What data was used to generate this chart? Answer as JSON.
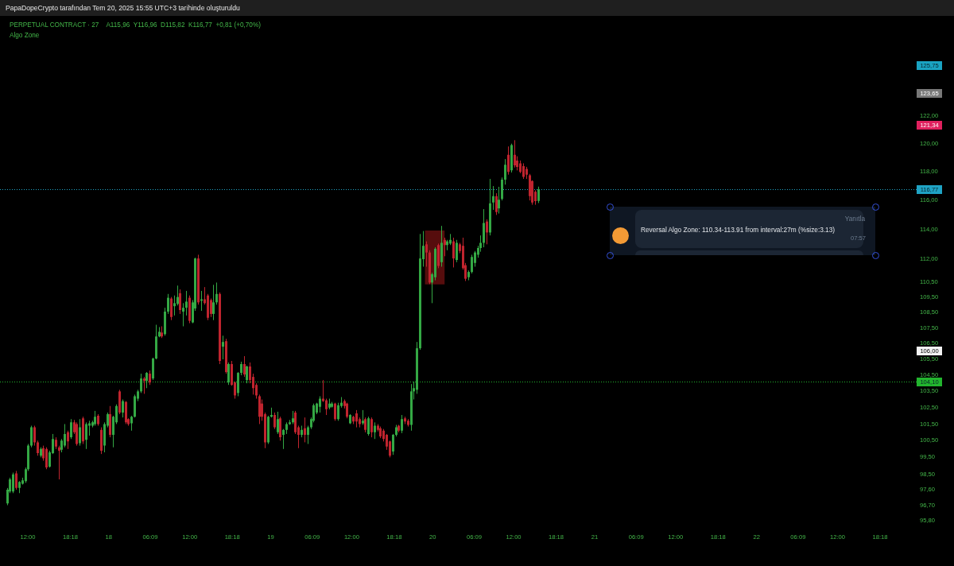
{
  "chart_data": {
    "type": "candlestick",
    "title": "PERPETUAL CONTRACT · 27",
    "subtitle": "A115,96  Y116,96  D115,82  K116,77  +0,81 (+0,70%)",
    "annotations": [
      "PapaDopeCrypto tarafından Tem 20, 2025 15:55 UTC+3 tarihinde oluşturuldu",
      "Algo Zone",
      "125,75",
      "123,65",
      "121,34",
      "106,00",
      "Yanıtla",
      "Reversal Algo Zone: 110.34-113.91 from interval:27m (%size:3.13)",
      "07:57"
    ],
    "x": [
      "2025-07-17T08:54",
      "2025-07-17T09:21",
      "2025-07-17T09:48",
      "2025-07-17T10:15",
      "2025-07-17T10:42",
      "2025-07-17T11:09",
      "2025-07-17T11:36",
      "2025-07-17T12:03",
      "2025-07-17T12:30",
      "2025-07-17T12:57",
      "2025-07-17T13:24",
      "2025-07-17T13:51",
      "2025-07-17T14:18",
      "2025-07-17T14:45",
      "2025-07-17T15:12",
      "2025-07-17T15:39",
      "2025-07-17T16:06",
      "2025-07-17T16:33",
      "2025-07-17T17:00",
      "2025-07-17T17:27",
      "2025-07-17T17:54",
      "2025-07-17T18:21",
      "2025-07-17T18:48",
      "2025-07-17T19:15",
      "2025-07-17T19:42",
      "2025-07-17T20:09",
      "2025-07-17T20:36",
      "2025-07-17T21:03",
      "2025-07-17T21:30",
      "2025-07-17T21:57",
      "2025-07-17T22:24",
      "2025-07-17T22:51",
      "2025-07-17T23:18",
      "2025-07-17T23:45",
      "2025-07-18T00:12",
      "2025-07-18T00:39",
      "2025-07-18T01:06",
      "2025-07-18T01:33",
      "2025-07-18T02:00",
      "2025-07-18T02:27",
      "2025-07-18T02:54",
      "2025-07-18T03:21",
      "2025-07-18T03:48",
      "2025-07-18T04:15",
      "2025-07-18T04:42",
      "2025-07-18T05:09",
      "2025-07-18T05:36",
      "2025-07-18T06:03",
      "2025-07-18T06:30",
      "2025-07-18T06:57",
      "2025-07-18T07:24",
      "2025-07-18T07:51",
      "2025-07-18T08:18",
      "2025-07-18T08:45",
      "2025-07-18T09:12",
      "2025-07-18T09:39",
      "2025-07-18T10:06",
      "2025-07-18T10:33",
      "2025-07-18T11:00",
      "2025-07-18T11:27",
      "2025-07-18T11:54",
      "2025-07-18T12:21",
      "2025-07-18T12:48",
      "2025-07-18T13:15",
      "2025-07-18T13:42",
      "2025-07-18T14:09",
      "2025-07-18T14:36",
      "2025-07-18T15:03",
      "2025-07-18T15:30",
      "2025-07-18T15:57",
      "2025-07-18T16:24",
      "2025-07-18T16:51",
      "2025-07-18T17:18",
      "2025-07-18T17:45",
      "2025-07-18T18:12",
      "2025-07-18T18:39",
      "2025-07-18T19:06",
      "2025-07-18T19:33",
      "2025-07-18T20:00",
      "2025-07-18T20:27",
      "2025-07-18T20:54",
      "2025-07-18T21:21",
      "2025-07-18T21:48",
      "2025-07-18T22:15",
      "2025-07-18T22:42",
      "2025-07-18T23:09",
      "2025-07-18T23:36",
      "2025-07-19T00:03",
      "2025-07-19T00:30",
      "2025-07-19T00:57",
      "2025-07-19T01:24",
      "2025-07-19T01:51",
      "2025-07-19T02:18",
      "2025-07-19T02:45",
      "2025-07-19T03:12",
      "2025-07-19T03:39",
      "2025-07-19T04:06",
      "2025-07-19T04:33",
      "2025-07-19T05:00",
      "2025-07-19T05:27",
      "2025-07-19T05:54",
      "2025-07-19T06:21",
      "2025-07-19T06:48",
      "2025-07-19T07:15",
      "2025-07-19T07:42",
      "2025-07-19T08:09",
      "2025-07-19T08:36",
      "2025-07-19T09:03",
      "2025-07-19T09:30",
      "2025-07-19T09:57",
      "2025-07-19T10:24",
      "2025-07-19T10:51",
      "2025-07-19T11:18",
      "2025-07-19T11:45",
      "2025-07-19T12:12",
      "2025-07-19T12:39",
      "2025-07-19T13:06",
      "2025-07-19T13:33",
      "2025-07-19T14:00",
      "2025-07-19T14:27",
      "2025-07-19T14:54",
      "2025-07-19T15:21",
      "2025-07-19T15:48",
      "2025-07-19T16:15",
      "2025-07-19T16:42",
      "2025-07-19T17:09",
      "2025-07-19T17:36",
      "2025-07-19T18:03",
      "2025-07-19T18:30",
      "2025-07-19T18:57",
      "2025-07-19T19:24",
      "2025-07-19T19:51",
      "2025-07-19T20:18",
      "2025-07-19T20:45",
      "2025-07-19T21:12",
      "2025-07-19T21:39",
      "2025-07-19T22:06",
      "2025-07-19T22:33",
      "2025-07-19T23:00",
      "2025-07-19T23:27",
      "2025-07-19T23:54",
      "2025-07-20T00:21",
      "2025-07-20T00:48",
      "2025-07-20T01:15",
      "2025-07-20T01:42",
      "2025-07-20T02:09",
      "2025-07-20T02:36",
      "2025-07-20T03:03",
      "2025-07-20T03:30",
      "2025-07-20T03:57",
      "2025-07-20T04:24",
      "2025-07-20T04:51",
      "2025-07-20T05:18",
      "2025-07-20T05:45",
      "2025-07-20T06:12",
      "2025-07-20T06:39",
      "2025-07-20T07:06",
      "2025-07-20T07:33",
      "2025-07-20T08:00",
      "2025-07-20T08:27",
      "2025-07-20T08:54",
      "2025-07-20T09:21",
      "2025-07-20T09:48",
      "2025-07-20T10:15",
      "2025-07-20T10:42",
      "2025-07-20T11:09",
      "2025-07-20T11:36",
      "2025-07-20T12:03",
      "2025-07-20T12:30",
      "2025-07-20T12:57",
      "2025-07-20T13:24",
      "2025-07-20T13:51",
      "2025-07-20T14:18",
      "2025-07-20T14:45",
      "2025-07-20T15:12",
      "2025-07-20T15:39"
    ],
    "ohlc": [
      [
        96.8,
        97.7,
        96.7,
        97.6
      ],
      [
        97.5,
        98.3,
        97.4,
        98.2
      ],
      [
        97.5,
        98.6,
        97.4,
        98.5
      ],
      [
        98.55,
        98.7,
        97.6,
        97.7
      ],
      [
        97.7,
        98.1,
        97.4,
        98.05
      ],
      [
        97.95,
        98.3,
        97.9,
        98.15
      ],
      [
        98.1,
        98.9,
        98.0,
        98.8
      ],
      [
        98.8,
        100.3,
        98.7,
        100.2
      ],
      [
        100.2,
        101.4,
        100.1,
        101.3
      ],
      [
        101.3,
        101.4,
        100.2,
        100.4
      ],
      [
        100.4,
        100.5,
        99.6,
        99.75
      ],
      [
        99.6,
        100.1,
        99.5,
        100.0
      ],
      [
        100.05,
        100.2,
        99.3,
        99.45
      ],
      [
        100.0,
        100.1,
        98.8,
        98.9
      ],
      [
        98.95,
        99.9,
        98.9,
        99.8
      ],
      [
        99.75,
        100.9,
        99.7,
        100.6
      ],
      [
        100.55,
        100.7,
        100.0,
        100.15
      ],
      [
        100.1,
        100.2,
        98.2,
        99.9
      ],
      [
        99.95,
        100.6,
        99.8,
        100.5
      ],
      [
        100.2,
        101.5,
        100.1,
        100.9
      ],
      [
        101.0,
        101.1,
        100.0,
        100.45
      ],
      [
        100.7,
        101.8,
        100.6,
        101.6
      ],
      [
        101.6,
        101.75,
        100.9,
        101.0
      ],
      [
        101.5,
        101.6,
        100.2,
        100.3
      ],
      [
        100.35,
        101.8,
        100.2,
        101.3
      ],
      [
        101.85,
        101.95,
        100.3,
        100.45
      ],
      [
        100.55,
        101.6,
        100.0,
        101.5
      ],
      [
        101.4,
        101.7,
        100.8,
        101.55
      ],
      [
        101.4,
        101.7,
        101.3,
        101.6
      ],
      [
        101.5,
        102.3,
        101.4,
        101.95
      ],
      [
        102.0,
        102.1,
        101.4,
        101.5
      ],
      [
        101.15,
        101.3,
        99.7,
        99.9
      ],
      [
        100.2,
        101.6,
        99.8,
        101.5
      ],
      [
        101.4,
        102.2,
        101.3,
        102.1
      ],
      [
        102.1,
        102.6,
        100.7,
        100.85
      ],
      [
        100.85,
        102.0,
        100.1,
        101.95
      ],
      [
        101.6,
        102.7,
        101.5,
        102.6
      ],
      [
        103.5,
        103.6,
        102.1,
        102.2
      ],
      [
        102.2,
        103.0,
        101.9,
        102.9
      ],
      [
        102.85,
        102.9,
        101.5,
        101.6
      ],
      [
        101.8,
        101.85,
        101.4,
        101.5
      ],
      [
        101.55,
        102.0,
        101.1,
        101.95
      ],
      [
        101.95,
        103.3,
        101.9,
        103.2
      ],
      [
        103.05,
        103.6,
        102.9,
        103.5
      ],
      [
        103.5,
        104.6,
        103.4,
        104.3
      ],
      [
        104.3,
        104.4,
        103.35,
        104.15
      ],
      [
        104.15,
        104.7,
        103.7,
        104.65
      ],
      [
        104.6,
        104.8,
        103.9,
        104.05
      ],
      [
        104.3,
        105.6,
        104.2,
        105.55
      ],
      [
        105.55,
        107.7,
        105.5,
        106.95
      ],
      [
        106.95,
        107.55,
        106.9,
        107.25
      ],
      [
        107.2,
        107.6,
        106.85,
        106.95
      ],
      [
        107.1,
        108.8,
        107.0,
        108.55
      ],
      [
        108.55,
        109.7,
        108.4,
        109.45
      ],
      [
        109.4,
        109.5,
        108.0,
        108.2
      ],
      [
        108.9,
        109.6,
        108.3,
        109.1
      ],
      [
        109.05,
        110.25,
        108.95,
        109.5
      ],
      [
        109.75,
        110.0,
        108.4,
        108.65
      ],
      [
        108.55,
        109.1,
        107.6,
        108.8
      ],
      [
        108.8,
        109.9,
        108.3,
        109.2
      ],
      [
        109.45,
        109.6,
        107.8,
        107.95
      ],
      [
        107.85,
        109.3,
        107.8,
        109.15
      ],
      [
        108.75,
        112.1,
        108.6,
        112.05
      ],
      [
        112.05,
        112.3,
        109.0,
        109.15
      ],
      [
        109.25,
        109.9,
        108.6,
        109.35
      ],
      [
        109.35,
        110.15,
        109.0,
        109.1
      ],
      [
        109.6,
        109.7,
        108.0,
        108.15
      ],
      [
        109.3,
        109.4,
        108.2,
        108.4
      ],
      [
        108.4,
        110.3,
        108.0,
        109.15
      ],
      [
        109.15,
        110.45,
        109.0,
        109.7
      ],
      [
        109.7,
        109.8,
        105.2,
        105.4
      ],
      [
        106.3,
        107.0,
        105.5,
        106.6
      ],
      [
        106.65,
        106.8,
        104.6,
        104.7
      ],
      [
        104.05,
        105.3,
        103.9,
        105.2
      ],
      [
        105.2,
        105.4,
        103.85,
        103.9
      ],
      [
        104.05,
        104.1,
        103.05,
        103.25
      ],
      [
        103.4,
        104.7,
        103.2,
        104.65
      ],
      [
        104.65,
        105.35,
        104.5,
        105.2
      ],
      [
        105.2,
        105.7,
        104.4,
        104.55
      ],
      [
        104.2,
        105.1,
        104.0,
        105.05
      ],
      [
        105.05,
        105.3,
        104.0,
        104.2
      ],
      [
        104.4,
        104.6,
        103.3,
        103.7
      ],
      [
        103.9,
        104.0,
        103.05,
        103.25
      ],
      [
        103.2,
        103.3,
        101.5,
        101.95
      ],
      [
        102.75,
        103.0,
        101.7,
        101.95
      ],
      [
        102.1,
        102.2,
        100.05,
        100.4
      ],
      [
        100.4,
        102.0,
        100.3,
        101.95
      ],
      [
        101.95,
        102.5,
        101.9,
        102.05
      ],
      [
        102.05,
        102.2,
        101.2,
        101.3
      ],
      [
        101.0,
        102.25,
        100.9,
        101.8
      ],
      [
        101.85,
        101.95,
        100.5,
        100.7
      ],
      [
        100.85,
        101.2,
        100.0,
        101.15
      ],
      [
        101.15,
        101.6,
        100.9,
        101.5
      ],
      [
        101.5,
        101.75,
        101.45,
        101.6
      ],
      [
        101.6,
        102.3,
        101.5,
        101.85
      ],
      [
        102.2,
        102.3,
        100.9,
        101.0
      ],
      [
        101.3,
        101.4,
        100.05,
        100.85
      ],
      [
        100.85,
        101.4,
        100.7,
        101.15
      ],
      [
        101.25,
        101.9,
        100.4,
        100.85
      ],
      [
        100.85,
        101.4,
        100.3,
        101.3
      ],
      [
        101.3,
        101.9,
        101.2,
        101.8
      ],
      [
        101.7,
        102.75,
        101.6,
        102.65
      ],
      [
        102.2,
        102.8,
        102.1,
        102.75
      ],
      [
        102.55,
        103.2,
        102.2,
        103.05
      ],
      [
        103.05,
        104.2,
        102.85,
        102.9
      ],
      [
        102.95,
        103.05,
        102.05,
        102.4
      ],
      [
        102.5,
        103.05,
        102.4,
        102.75
      ],
      [
        102.55,
        102.85,
        102.5,
        102.75
      ],
      [
        102.75,
        102.8,
        101.7,
        101.8
      ],
      [
        101.8,
        102.8,
        101.7,
        102.65
      ],
      [
        102.6,
        103.15,
        102.5,
        102.8
      ],
      [
        102.9,
        103.0,
        102.45,
        102.6
      ],
      [
        102.75,
        102.8,
        101.85,
        101.95
      ],
      [
        101.55,
        102.1,
        101.5,
        102.05
      ],
      [
        101.95,
        102.0,
        101.5,
        101.65
      ],
      [
        102.15,
        102.35,
        101.3,
        101.65
      ],
      [
        101.8,
        101.9,
        101.3,
        101.5
      ],
      [
        101.55,
        102.35,
        101.45,
        101.7
      ],
      [
        101.8,
        101.9,
        101.0,
        101.15
      ],
      [
        100.9,
        101.95,
        100.8,
        101.85
      ],
      [
        101.8,
        101.9,
        100.7,
        101.0
      ],
      [
        101.0,
        101.6,
        100.6,
        101.4
      ],
      [
        101.4,
        101.5,
        101.05,
        101.15
      ],
      [
        101.25,
        101.35,
        100.65,
        100.75
      ],
      [
        101.1,
        101.2,
        100.45,
        100.6
      ],
      [
        100.85,
        100.9,
        99.95,
        100.15
      ],
      [
        100.45,
        100.5,
        99.5,
        99.6
      ],
      [
        99.85,
        100.9,
        99.65,
        100.85
      ],
      [
        100.85,
        101.45,
        100.75,
        101.3
      ],
      [
        101.4,
        101.45,
        101.0,
        101.1
      ],
      [
        101.1,
        102.05,
        100.95,
        101.8
      ],
      [
        101.85,
        101.95,
        101.5,
        101.65
      ],
      [
        101.7,
        101.8,
        101.35,
        101.45
      ],
      [
        101.45,
        103.95,
        101.1,
        103.5
      ],
      [
        103.5,
        104.1,
        103.0,
        103.7
      ],
      [
        103.6,
        106.6,
        103.35,
        106.2
      ],
      [
        106.2,
        113.7,
        106.1,
        112.05
      ],
      [
        112.0,
        113.9,
        111.5,
        112.9
      ],
      [
        113.0,
        113.2,
        111.5,
        112.45
      ],
      [
        112.45,
        112.6,
        110.35,
        110.45
      ],
      [
        110.45,
        111.1,
        109.1,
        111.0
      ],
      [
        110.8,
        112.8,
        110.6,
        112.7
      ],
      [
        112.95,
        113.05,
        111.4,
        111.55
      ],
      [
        111.8,
        114.25,
        111.5,
        113.1
      ],
      [
        113.3,
        113.45,
        112.2,
        112.95
      ],
      [
        112.95,
        113.3,
        112.6,
        113.2
      ],
      [
        113.05,
        113.7,
        112.95,
        113.3
      ],
      [
        113.2,
        113.45,
        111.45,
        112.05
      ],
      [
        111.95,
        113.3,
        111.8,
        113.1
      ],
      [
        113.0,
        113.1,
        112.4,
        112.55
      ],
      [
        112.9,
        113.45,
        111.3,
        111.4
      ],
      [
        111.6,
        111.75,
        110.55,
        110.7
      ],
      [
        110.8,
        111.25,
        110.6,
        111.15
      ],
      [
        111.15,
        112.3,
        111.05,
        112.15
      ],
      [
        111.75,
        112.55,
        111.5,
        112.45
      ],
      [
        112.3,
        112.9,
        112.1,
        112.75
      ],
      [
        112.75,
        113.6,
        112.5,
        113.1
      ],
      [
        113.1,
        115.4,
        112.8,
        114.45
      ],
      [
        114.55,
        114.7,
        113.0,
        113.8
      ],
      [
        113.8,
        117.5,
        113.6,
        115.8
      ],
      [
        115.85,
        117.0,
        115.35,
        116.3
      ],
      [
        116.3,
        116.5,
        115.0,
        115.2
      ],
      [
        115.45,
        116.95,
        115.1,
        116.05
      ],
      [
        116.1,
        117.6,
        116.0,
        117.45
      ],
      [
        117.45,
        118.9,
        117.1,
        118.5
      ],
      [
        119.2,
        119.8,
        117.8,
        118.0
      ],
      [
        118.1,
        120.0,
        117.95,
        119.9
      ],
      [
        119.2,
        120.25,
        118.3,
        118.45
      ],
      [
        118.8,
        119.1,
        118.1,
        118.35
      ],
      [
        118.6,
        118.8,
        117.9,
        118.0
      ],
      [
        118.4,
        118.6,
        117.5,
        117.65
      ],
      [
        118.2,
        118.35,
        117.5,
        117.8
      ],
      [
        117.75,
        117.85,
        116.0,
        116.3
      ],
      [
        117.35,
        117.4,
        115.7,
        115.85
      ],
      [
        116.6,
        116.7,
        115.7,
        115.95
      ],
      [
        115.96,
        116.96,
        115.82,
        116.77
      ]
    ],
    "series": [
      {
        "type": "bar",
        "color": "#6b1010",
        "x": [
          "2025-07-20T00:19"
        ],
        "base": [
          110.34
        ],
        "values": [
          3.57
        ]
      }
    ],
    "xlim": [
      "2025-07-17T07:53",
      "2025-07-22T18:18"
    ],
    "xticks": [
      {
        "value": "2025-07-17T12:00",
        "label": "12:00"
      },
      {
        "value": "2025-07-17T18:18",
        "label": "18:18"
      },
      {
        "value": "2025-07-18T00:00",
        "label": "18"
      },
      {
        "value": "2025-07-18T06:09",
        "label": "06:09"
      },
      {
        "value": "2025-07-18T12:00",
        "label": "12:00"
      },
      {
        "value": "2025-07-18T18:18",
        "label": "18:18"
      },
      {
        "value": "2025-07-19T00:00",
        "label": "19"
      },
      {
        "value": "2025-07-19T06:09",
        "label": "06:09"
      },
      {
        "value": "2025-07-19T12:00",
        "label": "12:00"
      },
      {
        "value": "2025-07-19T18:18",
        "label": "18:18"
      },
      {
        "value": "2025-07-20T00:00",
        "label": "20"
      },
      {
        "value": "2025-07-20T06:09",
        "label": "06:09"
      },
      {
        "value": "2025-07-20T12:00",
        "label": "12:00"
      },
      {
        "value": "2025-07-20T18:18",
        "label": "18:18"
      },
      {
        "value": "2025-07-21T00:00",
        "label": "21"
      },
      {
        "value": "2025-07-21T06:09",
        "label": "06:09"
      },
      {
        "value": "2025-07-21T12:00",
        "label": "12:00"
      },
      {
        "value": "2025-07-21T18:18",
        "label": "18:18"
      },
      {
        "value": "2025-07-22T00:00",
        "label": "22"
      },
      {
        "value": "2025-07-22T06:09",
        "label": "06:09"
      },
      {
        "value": "2025-07-22T12:00",
        "label": "12:00"
      },
      {
        "value": "2025-07-22T18:18",
        "label": "18:18"
      }
    ],
    "ylim": [
      95.8,
      122
    ],
    "yticks": [
      {
        "value": 95.8,
        "label": "95,80"
      },
      {
        "value": 96.7,
        "label": "96,70"
      },
      {
        "value": 97.6,
        "label": "97,60"
      },
      {
        "value": 98.5,
        "label": "98,50"
      },
      {
        "value": 99.5,
        "label": "99,50"
      },
      {
        "value": 100.5,
        "label": "100,50"
      },
      {
        "value": 101.5,
        "label": "101,50"
      },
      {
        "value": 102.5,
        "label": "102,50"
      },
      {
        "value": 103.5,
        "label": "103,50"
      },
      {
        "value": 104.5,
        "label": "104,50"
      },
      {
        "value": 105.5,
        "label": "105,50"
      },
      {
        "value": 106.5,
        "label": "106,50"
      },
      {
        "value": 107.5,
        "label": "107,50"
      },
      {
        "value": 108.5,
        "label": "108,50"
      },
      {
        "value": 109.5,
        "label": "109,50"
      },
      {
        "value": 110.5,
        "label": "110,50"
      },
      {
        "value": 112,
        "label": "112,00"
      },
      {
        "value": 114,
        "label": "114,00"
      },
      {
        "value": 116,
        "label": "116,00"
      },
      {
        "value": 118,
        "label": "118,00"
      },
      {
        "value": 120,
        "label": "120,00"
      },
      {
        "value": 122,
        "label": "122,00"
      }
    ],
    "log": true,
    "ref_lines": [
      {
        "axis": "y",
        "value": 116.77,
        "label": "116,77",
        "color": "#1fa3c4",
        "line_style": "dotted"
      },
      {
        "axis": "y",
        "value": 104.1,
        "label": "104,10",
        "color": "#22b52e",
        "line_style": "dotted"
      }
    ]
  }
}
